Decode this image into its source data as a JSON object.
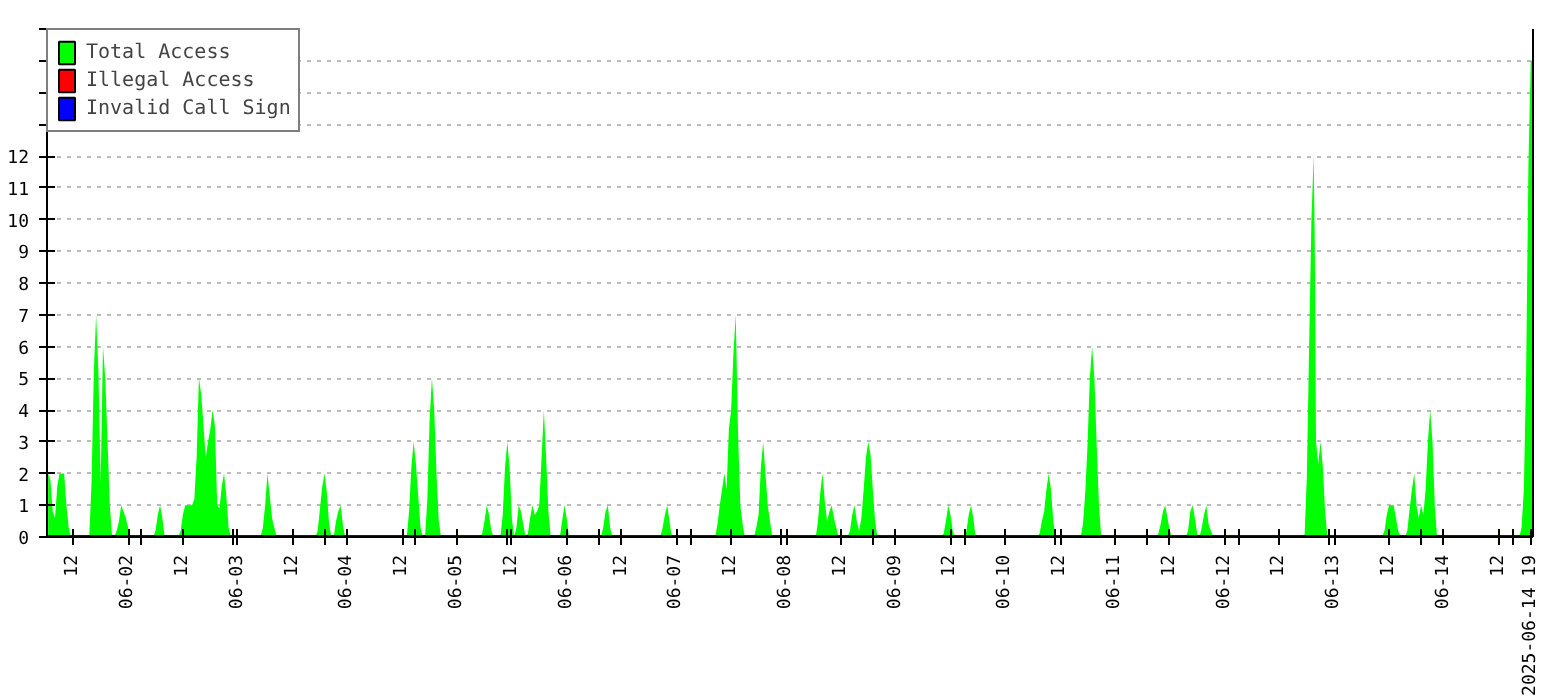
{
  "chart_data": {
    "type": "area",
    "xlim": [
      "2025-06-01T06:15",
      "2025-06-14T19:30"
    ],
    "ylim": [
      0,
      16
    ],
    "yticks": [
      0,
      1,
      2,
      3,
      4,
      5,
      6,
      7,
      8,
      9,
      10,
      11,
      12,
      {
        "value": 13,
        "label": null
      },
      {
        "value": 14,
        "label": null
      },
      {
        "value": 15,
        "label": null
      },
      {
        "value": 16,
        "label": null
      }
    ],
    "xticks": [
      {
        "value": "2025-06-01T12:00",
        "label": "12"
      },
      {
        "value": "2025-06-02T00:00",
        "label": "06-02"
      },
      {
        "value": "2025-06-02T12:00",
        "label": "12"
      },
      {
        "value": "2025-06-03T00:00",
        "label": "06-03"
      },
      {
        "value": "2025-06-03T12:00",
        "label": "12"
      },
      {
        "value": "2025-06-04T00:00",
        "label": "06-04"
      },
      {
        "value": "2025-06-04T12:00",
        "label": "12"
      },
      {
        "value": "2025-06-05T00:00",
        "label": "06-05"
      },
      {
        "value": "2025-06-05T12:00",
        "label": "12"
      },
      {
        "value": "2025-06-06T00:00",
        "label": "06-06"
      },
      {
        "value": "2025-06-06T12:00",
        "label": "12"
      },
      {
        "value": "2025-06-07T00:00",
        "label": "06-07"
      },
      {
        "value": "2025-06-07T12:00",
        "label": "12"
      },
      {
        "value": "2025-06-08T00:00",
        "label": "06-08"
      },
      {
        "value": "2025-06-08T12:00",
        "label": "12"
      },
      {
        "value": "2025-06-09T00:00",
        "label": "06-09"
      },
      {
        "value": "2025-06-09T12:00",
        "label": "12"
      },
      {
        "value": "2025-06-10T00:00",
        "label": "06-10"
      },
      {
        "value": "2025-06-10T12:00",
        "label": "12"
      },
      {
        "value": "2025-06-11T00:00",
        "label": "06-11"
      },
      {
        "value": "2025-06-11T12:00",
        "label": "12"
      },
      {
        "value": "2025-06-12T00:00",
        "label": "06-12"
      },
      {
        "value": "2025-06-12T12:00",
        "label": "12"
      },
      {
        "value": "2025-06-13T00:00",
        "label": "06-13"
      },
      {
        "value": "2025-06-13T12:00",
        "label": "12"
      },
      {
        "value": "2025-06-14T00:00",
        "label": "06-14"
      },
      {
        "value": "2025-06-14T12:00",
        "label": "12"
      },
      {
        "value": "2025-06-14T19:00",
        "label": "2025-06-14 19"
      },
      {
        "value": "2025-06-02T03:00",
        "label": null
      },
      {
        "value": "2025-06-02T23:00",
        "label": null
      },
      {
        "value": "2025-06-03T19:00",
        "label": null
      },
      {
        "value": "2025-06-04T15:00",
        "label": null
      },
      {
        "value": "2025-06-05T11:00",
        "label": null
      },
      {
        "value": "2025-06-06T07:00",
        "label": null
      },
      {
        "value": "2025-06-07T03:00",
        "label": null
      },
      {
        "value": "2025-06-07T23:00",
        "label": null
      },
      {
        "value": "2025-06-08T19:00",
        "label": null
      },
      {
        "value": "2025-06-09T15:00",
        "label": null
      },
      {
        "value": "2025-06-10T11:00",
        "label": null
      },
      {
        "value": "2025-06-11T07:00",
        "label": null
      },
      {
        "value": "2025-06-12T03:00",
        "label": null
      },
      {
        "value": "2025-06-12T23:00",
        "label": null
      },
      {
        "value": "2025-06-13T19:00",
        "label": null
      },
      {
        "value": "2025-06-14T15:00",
        "label": null
      }
    ],
    "grid": "y",
    "legend": "top left",
    "series": [
      {
        "name": "Total Access",
        "color": "#00ff00",
        "x": [
          "2025-06-01T06:30",
          "2025-06-01T07:00",
          "2025-06-01T07:30",
          "2025-06-01T08:00",
          "2025-06-01T08:30",
          "2025-06-01T09:00",
          "2025-06-01T09:30",
          "2025-06-01T10:00",
          "2025-06-01T10:30",
          "2025-06-01T11:00",
          "2025-06-01T11:30",
          "2025-06-01T15:30",
          "2025-06-01T16:00",
          "2025-06-01T16:30",
          "2025-06-01T17:00",
          "2025-06-01T17:30",
          "2025-06-01T18:00",
          "2025-06-01T18:30",
          "2025-06-01T19:00",
          "2025-06-01T19:30",
          "2025-06-01T20:00",
          "2025-06-01T20:30",
          "2025-06-01T21:00",
          "2025-06-01T21:30",
          "2025-06-01T22:00",
          "2025-06-01T22:30",
          "2025-06-01T23:00",
          "2025-06-01T23:30",
          "2025-06-02T00:00",
          "2025-06-02T00:30",
          "2025-06-02T05:30",
          "2025-06-02T06:00",
          "2025-06-02T06:30",
          "2025-06-02T07:00",
          "2025-06-02T07:30",
          "2025-06-02T08:00",
          "2025-06-02T11:00",
          "2025-06-02T11:30",
          "2025-06-02T12:00",
          "2025-06-02T12:30",
          "2025-06-02T13:00",
          "2025-06-02T13:30",
          "2025-06-02T14:00",
          "2025-06-02T14:30",
          "2025-06-02T15:00",
          "2025-06-02T15:30",
          "2025-06-02T16:00",
          "2025-06-02T16:30",
          "2025-06-02T17:00",
          "2025-06-02T17:30",
          "2025-06-02T18:00",
          "2025-06-02T18:30",
          "2025-06-02T19:00",
          "2025-06-02T19:30",
          "2025-06-02T20:00",
          "2025-06-02T20:30",
          "2025-06-02T21:00",
          "2025-06-02T21:30",
          "2025-06-02T22:00",
          "2025-06-02T22:30",
          "2025-06-03T05:00",
          "2025-06-03T05:30",
          "2025-06-03T06:00",
          "2025-06-03T06:30",
          "2025-06-03T07:00",
          "2025-06-03T07:30",
          "2025-06-03T08:00",
          "2025-06-03T08:30",
          "2025-06-03T17:00",
          "2025-06-03T17:30",
          "2025-06-03T18:00",
          "2025-06-03T18:30",
          "2025-06-03T19:00",
          "2025-06-03T19:30",
          "2025-06-03T20:00",
          "2025-06-03T20:30",
          "2025-06-03T21:00",
          "2025-06-03T21:30",
          "2025-06-03T22:00",
          "2025-06-03T22:30",
          "2025-06-03T23:00",
          "2025-06-03T23:30",
          "2025-06-04T13:00",
          "2025-06-04T13:30",
          "2025-06-04T14:00",
          "2025-06-04T14:30",
          "2025-06-04T15:00",
          "2025-06-04T15:30",
          "2025-06-04T16:00",
          "2025-06-04T16:30",
          "2025-06-04T17:00",
          "2025-06-04T17:30",
          "2025-06-04T18:00",
          "2025-06-04T18:30",
          "2025-06-04T19:00",
          "2025-06-04T19:30",
          "2025-06-04T20:00",
          "2025-06-04T20:30",
          "2025-06-05T05:00",
          "2025-06-05T05:30",
          "2025-06-05T06:00",
          "2025-06-05T06:30",
          "2025-06-05T07:00",
          "2025-06-05T07:30",
          "2025-06-05T08:00",
          "2025-06-05T09:30",
          "2025-06-05T10:00",
          "2025-06-05T10:30",
          "2025-06-05T11:00",
          "2025-06-05T11:30",
          "2025-06-05T12:00",
          "2025-06-05T12:30",
          "2025-06-05T13:00",
          "2025-06-05T13:30",
          "2025-06-05T14:00",
          "2025-06-05T14:30",
          "2025-06-05T15:00",
          "2025-06-05T15:30",
          "2025-06-05T16:00",
          "2025-06-05T16:30",
          "2025-06-05T17:00",
          "2025-06-05T17:30",
          "2025-06-05T18:00",
          "2025-06-05T18:30",
          "2025-06-05T19:00",
          "2025-06-05T19:30",
          "2025-06-05T20:00",
          "2025-06-05T20:30",
          "2025-06-05T22:30",
          "2025-06-05T23:00",
          "2025-06-05T23:30",
          "2025-06-06T00:00",
          "2025-06-06T00:30",
          "2025-06-06T07:30",
          "2025-06-06T08:00",
          "2025-06-06T08:30",
          "2025-06-06T09:00",
          "2025-06-06T09:30",
          "2025-06-06T10:00",
          "2025-06-06T20:30",
          "2025-06-06T21:00",
          "2025-06-06T21:30",
          "2025-06-06T22:00",
          "2025-06-06T22:30",
          "2025-06-06T23:00",
          "2025-06-07T08:30",
          "2025-06-07T09:00",
          "2025-06-07T09:30",
          "2025-06-07T10:00",
          "2025-06-07T10:30",
          "2025-06-07T11:00",
          "2025-06-07T11:30",
          "2025-06-07T12:00",
          "2025-06-07T12:30",
          "2025-06-07T13:00",
          "2025-06-07T13:30",
          "2025-06-07T14:00",
          "2025-06-07T14:30",
          "2025-06-07T15:00",
          "2025-06-07T17:00",
          "2025-06-07T17:30",
          "2025-06-07T18:00",
          "2025-06-07T18:30",
          "2025-06-07T19:00",
          "2025-06-07T19:30",
          "2025-06-07T20:00",
          "2025-06-07T20:30",
          "2025-06-07T21:00",
          "2025-06-08T06:30",
          "2025-06-08T07:00",
          "2025-06-08T07:30",
          "2025-06-08T08:00",
          "2025-06-08T08:30",
          "2025-06-08T09:00",
          "2025-06-08T09:30",
          "2025-06-08T10:00",
          "2025-06-08T10:30",
          "2025-06-08T11:00",
          "2025-06-08T11:30",
          "2025-06-08T13:30",
          "2025-06-08T14:00",
          "2025-06-08T14:30",
          "2025-06-08T15:00",
          "2025-06-08T15:30",
          "2025-06-08T16:00",
          "2025-06-08T16:30",
          "2025-06-08T17:00",
          "2025-06-08T17:30",
          "2025-06-08T18:00",
          "2025-06-08T18:30",
          "2025-06-08T19:00",
          "2025-06-08T19:30",
          "2025-06-08T20:00",
          "2025-06-09T10:00",
          "2025-06-09T10:30",
          "2025-06-09T11:00",
          "2025-06-09T11:30",
          "2025-06-09T12:00",
          "2025-06-09T12:30",
          "2025-06-09T13:00",
          "2025-06-09T15:00",
          "2025-06-09T15:30",
          "2025-06-09T16:00",
          "2025-06-09T16:30",
          "2025-06-09T17:00",
          "2025-06-09T17:30",
          "2025-06-10T07:00",
          "2025-06-10T07:30",
          "2025-06-10T08:00",
          "2025-06-10T08:30",
          "2025-06-10T09:00",
          "2025-06-10T09:30",
          "2025-06-10T10:00",
          "2025-06-10T10:30",
          "2025-06-10T11:00",
          "2025-06-10T16:30",
          "2025-06-10T17:00",
          "2025-06-10T17:30",
          "2025-06-10T18:00",
          "2025-06-10T18:30",
          "2025-06-10T19:00",
          "2025-06-10T19:30",
          "2025-06-10T20:00",
          "2025-06-10T20:30",
          "2025-06-10T21:00",
          "2025-06-11T09:00",
          "2025-06-11T09:30",
          "2025-06-11T10:00",
          "2025-06-11T10:30",
          "2025-06-11T11:00",
          "2025-06-11T11:30",
          "2025-06-11T12:00",
          "2025-06-11T12:30",
          "2025-06-11T15:30",
          "2025-06-11T16:00",
          "2025-06-11T16:30",
          "2025-06-11T17:00",
          "2025-06-11T17:30",
          "2025-06-11T18:00",
          "2025-06-11T18:30",
          "2025-06-11T19:00",
          "2025-06-11T19:30",
          "2025-06-11T20:00",
          "2025-06-11T20:30",
          "2025-06-11T21:00",
          "2025-06-11T21:30",
          "2025-06-12T17:30",
          "2025-06-12T18:00",
          "2025-06-12T18:30",
          "2025-06-12T19:00",
          "2025-06-12T19:30",
          "2025-06-12T19:45",
          "2025-06-12T20:00",
          "2025-06-12T20:30",
          "2025-06-12T21:00",
          "2025-06-12T21:30",
          "2025-06-12T22:00",
          "2025-06-12T22:30",
          "2025-06-13T10:30",
          "2025-06-13T11:00",
          "2025-06-13T11:30",
          "2025-06-13T12:00",
          "2025-06-13T12:30",
          "2025-06-13T13:00",
          "2025-06-13T13:30",
          "2025-06-13T14:00",
          "2025-06-13T14:30",
          "2025-06-13T15:30",
          "2025-06-13T16:00",
          "2025-06-13T16:30",
          "2025-06-13T17:00",
          "2025-06-13T17:30",
          "2025-06-13T18:00",
          "2025-06-13T18:30",
          "2025-06-13T19:00",
          "2025-06-13T19:30",
          "2025-06-13T20:00",
          "2025-06-13T20:30",
          "2025-06-13T21:00",
          "2025-06-13T21:30",
          "2025-06-13T22:00",
          "2025-06-13T22:30",
          "2025-06-14T16:30",
          "2025-06-14T17:00",
          "2025-06-14T17:30",
          "2025-06-14T18:00",
          "2025-06-14T18:30",
          "2025-06-14T19:00",
          "2025-06-14T19:30"
        ],
        "values": [
          2,
          1.8,
          0.8,
          0.6,
          1.6,
          2,
          2,
          2,
          1,
          0.3,
          0,
          0,
          1.7,
          5.2,
          7,
          5.2,
          1.7,
          6,
          5,
          3,
          1,
          0,
          0,
          0.2,
          0.5,
          1,
          0.8,
          0.6,
          0.3,
          0,
          0,
          0.2,
          0.7,
          1,
          0.6,
          0,
          0,
          0.2,
          0.7,
          1,
          1,
          1,
          1,
          1.2,
          2.5,
          5,
          4.5,
          3.5,
          2.5,
          3,
          3.4,
          4,
          3.5,
          1,
          0.9,
          1.6,
          2,
          1.3,
          0.3,
          0,
          0,
          0.3,
          1,
          2,
          1.3,
          0.6,
          0.3,
          0,
          0,
          0.2,
          0.9,
          1.6,
          2,
          1.4,
          0.4,
          0,
          0,
          0.5,
          0.8,
          1,
          0.4,
          0,
          0,
          0.8,
          2.2,
          3,
          2.3,
          1.3,
          0.3,
          0,
          0,
          1.2,
          3.7,
          5,
          4,
          2,
          0.5,
          0,
          0,
          0.1,
          0.5,
          1,
          0.7,
          0.2,
          0,
          0,
          0.7,
          2.2,
          3,
          2.2,
          0.6,
          0,
          0.3,
          1,
          0.8,
          0.4,
          0,
          0.1,
          0.6,
          1,
          0.7,
          0.8,
          1,
          2.5,
          4,
          2.5,
          0.8,
          0,
          0,
          0.5,
          1,
          0.6,
          0,
          0,
          0.3,
          0.8,
          1,
          0.3,
          0,
          0,
          0.3,
          0.7,
          1,
          0.5,
          0,
          0,
          0.4,
          1,
          1.5,
          2,
          1.5,
          3.4,
          4,
          5.8,
          7,
          3.3,
          1,
          0.4,
          0,
          0,
          0.3,
          0.7,
          2.2,
          3,
          2,
          1,
          0.5,
          0,
          0,
          0.5,
          1.4,
          2,
          1.1,
          0.5,
          0.8,
          1,
          0.6,
          0.3,
          0,
          0,
          0.2,
          0.7,
          1,
          0.5,
          0.2,
          0.6,
          1.5,
          2.5,
          3,
          2.6,
          1.5,
          0.5,
          0,
          0,
          0.1,
          0.5,
          1,
          0.7,
          0.2,
          0,
          0,
          0.2,
          0.7,
          1,
          0.6,
          0,
          0,
          0.1,
          0.5,
          0.8,
          1.5,
          2,
          1.5,
          0.5,
          0,
          0,
          0.4,
          1.4,
          2.9,
          5,
          6,
          5,
          2.9,
          1,
          0,
          0,
          0.1,
          0.4,
          0.8,
          1,
          0.6,
          0.2,
          0,
          0,
          0.2,
          0.8,
          1,
          0.6,
          0.1,
          0,
          0.3,
          0.7,
          1,
          0.4,
          0.2,
          0,
          0,
          1.9,
          6,
          10,
          12,
          9,
          3,
          2.3,
          3,
          2.2,
          0.8,
          0,
          0,
          0.2,
          0.7,
          1,
          1,
          1,
          0.6,
          0.2,
          0,
          0,
          0.2,
          0.9,
          1.5,
          2,
          1,
          0.6,
          1,
          0.7,
          1.5,
          3,
          4,
          3,
          1,
          0,
          0,
          0.3,
          1.5,
          5.2,
          11.7,
          15,
          15
        ]
      },
      {
        "name": "Illegal Access",
        "color": "#ff0000",
        "type": "line"
      },
      {
        "name": "Invalid Call Sign",
        "color": "#0000ff",
        "type": "line",
        "x": [
          "2025-06-01T06:15",
          "2025-06-14T19:30"
        ],
        "values": [
          0,
          0
        ]
      }
    ]
  }
}
